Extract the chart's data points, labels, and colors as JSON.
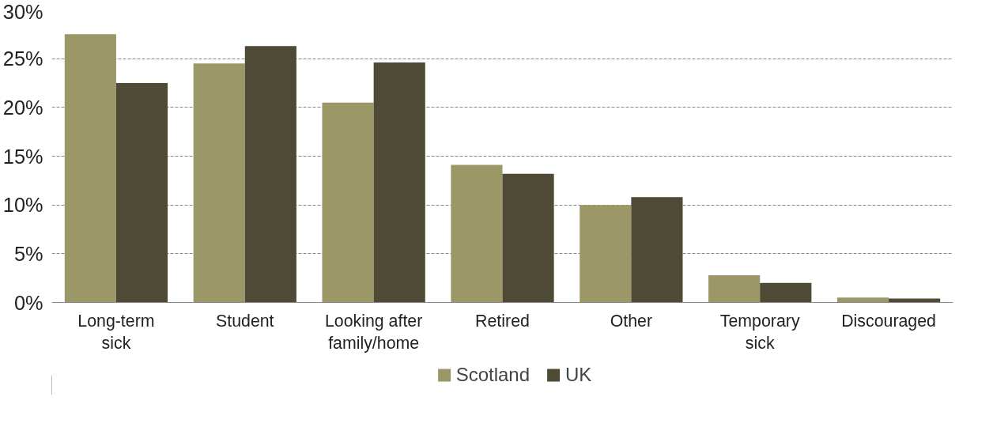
{
  "chart_data": {
    "type": "bar",
    "categories": [
      "Long-term\nsick",
      "Student",
      "Looking after\nfamily/home",
      "Retired",
      "Other",
      "Temporary\nsick",
      "Discouraged"
    ],
    "series": [
      {
        "name": "Scotland",
        "color": "#9c9766",
        "values": [
          27.5,
          24.5,
          20.5,
          14.1,
          10.0,
          2.8,
          0.5
        ]
      },
      {
        "name": "UK",
        "color": "#4f4a35",
        "values": [
          22.5,
          26.3,
          24.6,
          13.2,
          10.8,
          2.0,
          0.4
        ]
      }
    ],
    "ylim": [
      0,
      30
    ],
    "yticks": [
      {
        "value": 0,
        "label": "0%"
      },
      {
        "value": 5,
        "label": "5%"
      },
      {
        "value": 10,
        "label": "10%"
      },
      {
        "value": 15,
        "label": "15%"
      },
      {
        "value": 20,
        "label": "20%"
      },
      {
        "value": 25,
        "label": "25%"
      },
      {
        "value": 30,
        "label": "30%"
      }
    ],
    "grid": "y",
    "legend": "bottom"
  }
}
